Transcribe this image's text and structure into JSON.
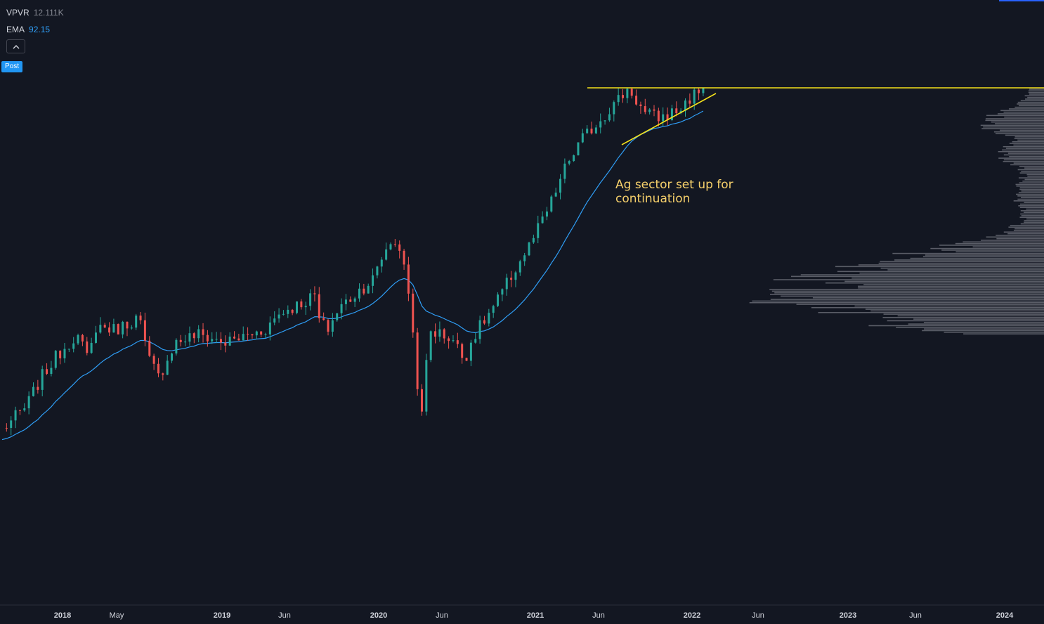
{
  "legend": {
    "vpvr": {
      "label": "VPVR",
      "value": "12.111K"
    },
    "ema": {
      "label": "EMA",
      "value": "92.15"
    }
  },
  "badge": {
    "label": "Post"
  },
  "annotation": {
    "text": "Ag sector set up for\ncontinuation"
  },
  "colors": {
    "background": "#131722",
    "up": "#26a69a",
    "down": "#ef5350",
    "ema": "#2f9ef6",
    "trendline": "#f5e21b",
    "annotation": "#f6d06b",
    "volume_profile": "#9598a1"
  },
  "chart_data": {
    "type": "candlestick",
    "timeframe": "weekly",
    "x_axis": {
      "tick_labels": [
        "2018",
        "May",
        "2019",
        "Jun",
        "2020",
        "Jun",
        "2021",
        "Jun",
        "2022",
        "Jun",
        "2023",
        "Jun",
        "2024"
      ],
      "bold_labels": [
        "2018",
        "2019",
        "2020",
        "2021",
        "2022",
        "2023",
        "2024"
      ]
    },
    "y_range": [
      0,
      100
    ],
    "price_path": [
      [
        0.0,
        21
      ],
      [
        0.6,
        26
      ],
      [
        1.0,
        33
      ],
      [
        1.4,
        38
      ],
      [
        1.9,
        43
      ],
      [
        2.2,
        37
      ],
      [
        2.4,
        45
      ],
      [
        2.9,
        44
      ],
      [
        3.5,
        47
      ],
      [
        3.7,
        38
      ],
      [
        4.0,
        33
      ],
      [
        4.4,
        41
      ],
      [
        5.0,
        43
      ],
      [
        5.7,
        41
      ],
      [
        6.7,
        44
      ],
      [
        7.1,
        48
      ],
      [
        7.6,
        50
      ],
      [
        8.0,
        52
      ],
      [
        8.1,
        46
      ],
      [
        8.3,
        44
      ],
      [
        8.6,
        49
      ],
      [
        9.1,
        53
      ],
      [
        9.5,
        56
      ],
      [
        9.8,
        63
      ],
      [
        10.1,
        65
      ],
      [
        10.4,
        52
      ],
      [
        10.7,
        22
      ],
      [
        10.9,
        44
      ],
      [
        11.5,
        42
      ],
      [
        11.8,
        37
      ],
      [
        12.0,
        42
      ],
      [
        12.6,
        50
      ],
      [
        13.1,
        58
      ],
      [
        13.5,
        64
      ],
      [
        14.0,
        73
      ],
      [
        14.4,
        82
      ],
      [
        14.8,
        88
      ],
      [
        15.2,
        92
      ],
      [
        15.6,
        96
      ],
      [
        16.0,
        100
      ],
      [
        16.4,
        94
      ],
      [
        16.8,
        93
      ],
      [
        17.3,
        95
      ],
      [
        17.6,
        98
      ],
      [
        17.9,
        100
      ]
    ],
    "ema_last": 92.15,
    "resistance_level": 100,
    "volume_profile_price_range": [
      43,
      100
    ]
  }
}
